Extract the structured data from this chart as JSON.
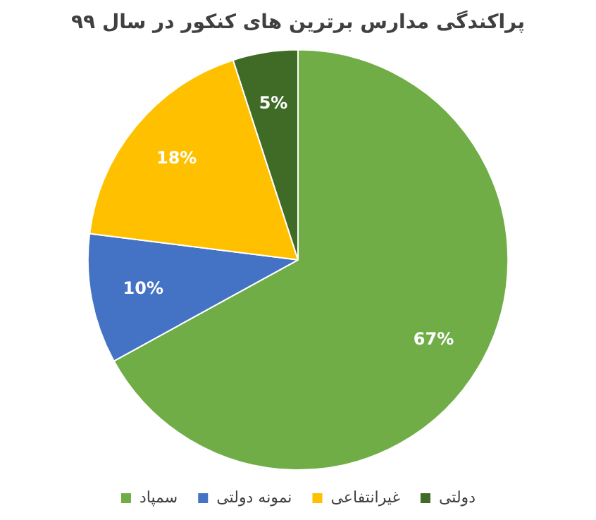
{
  "chart_data": {
    "type": "pie",
    "title": "پراکندگی مدارس برترین های کنکور در سال ۹۹",
    "categories": [
      "سمپاد",
      "نمونه دولتی",
      "غیرانتفاعی",
      "دولتی"
    ],
    "values": [
      67,
      10,
      18,
      5
    ],
    "colors": [
      "#70ad47",
      "#4472c4",
      "#ffc000",
      "#3f6b27"
    ],
    "value_labels": [
      "67%",
      "10%",
      "18%",
      "5%"
    ],
    "legend": "bottom"
  }
}
